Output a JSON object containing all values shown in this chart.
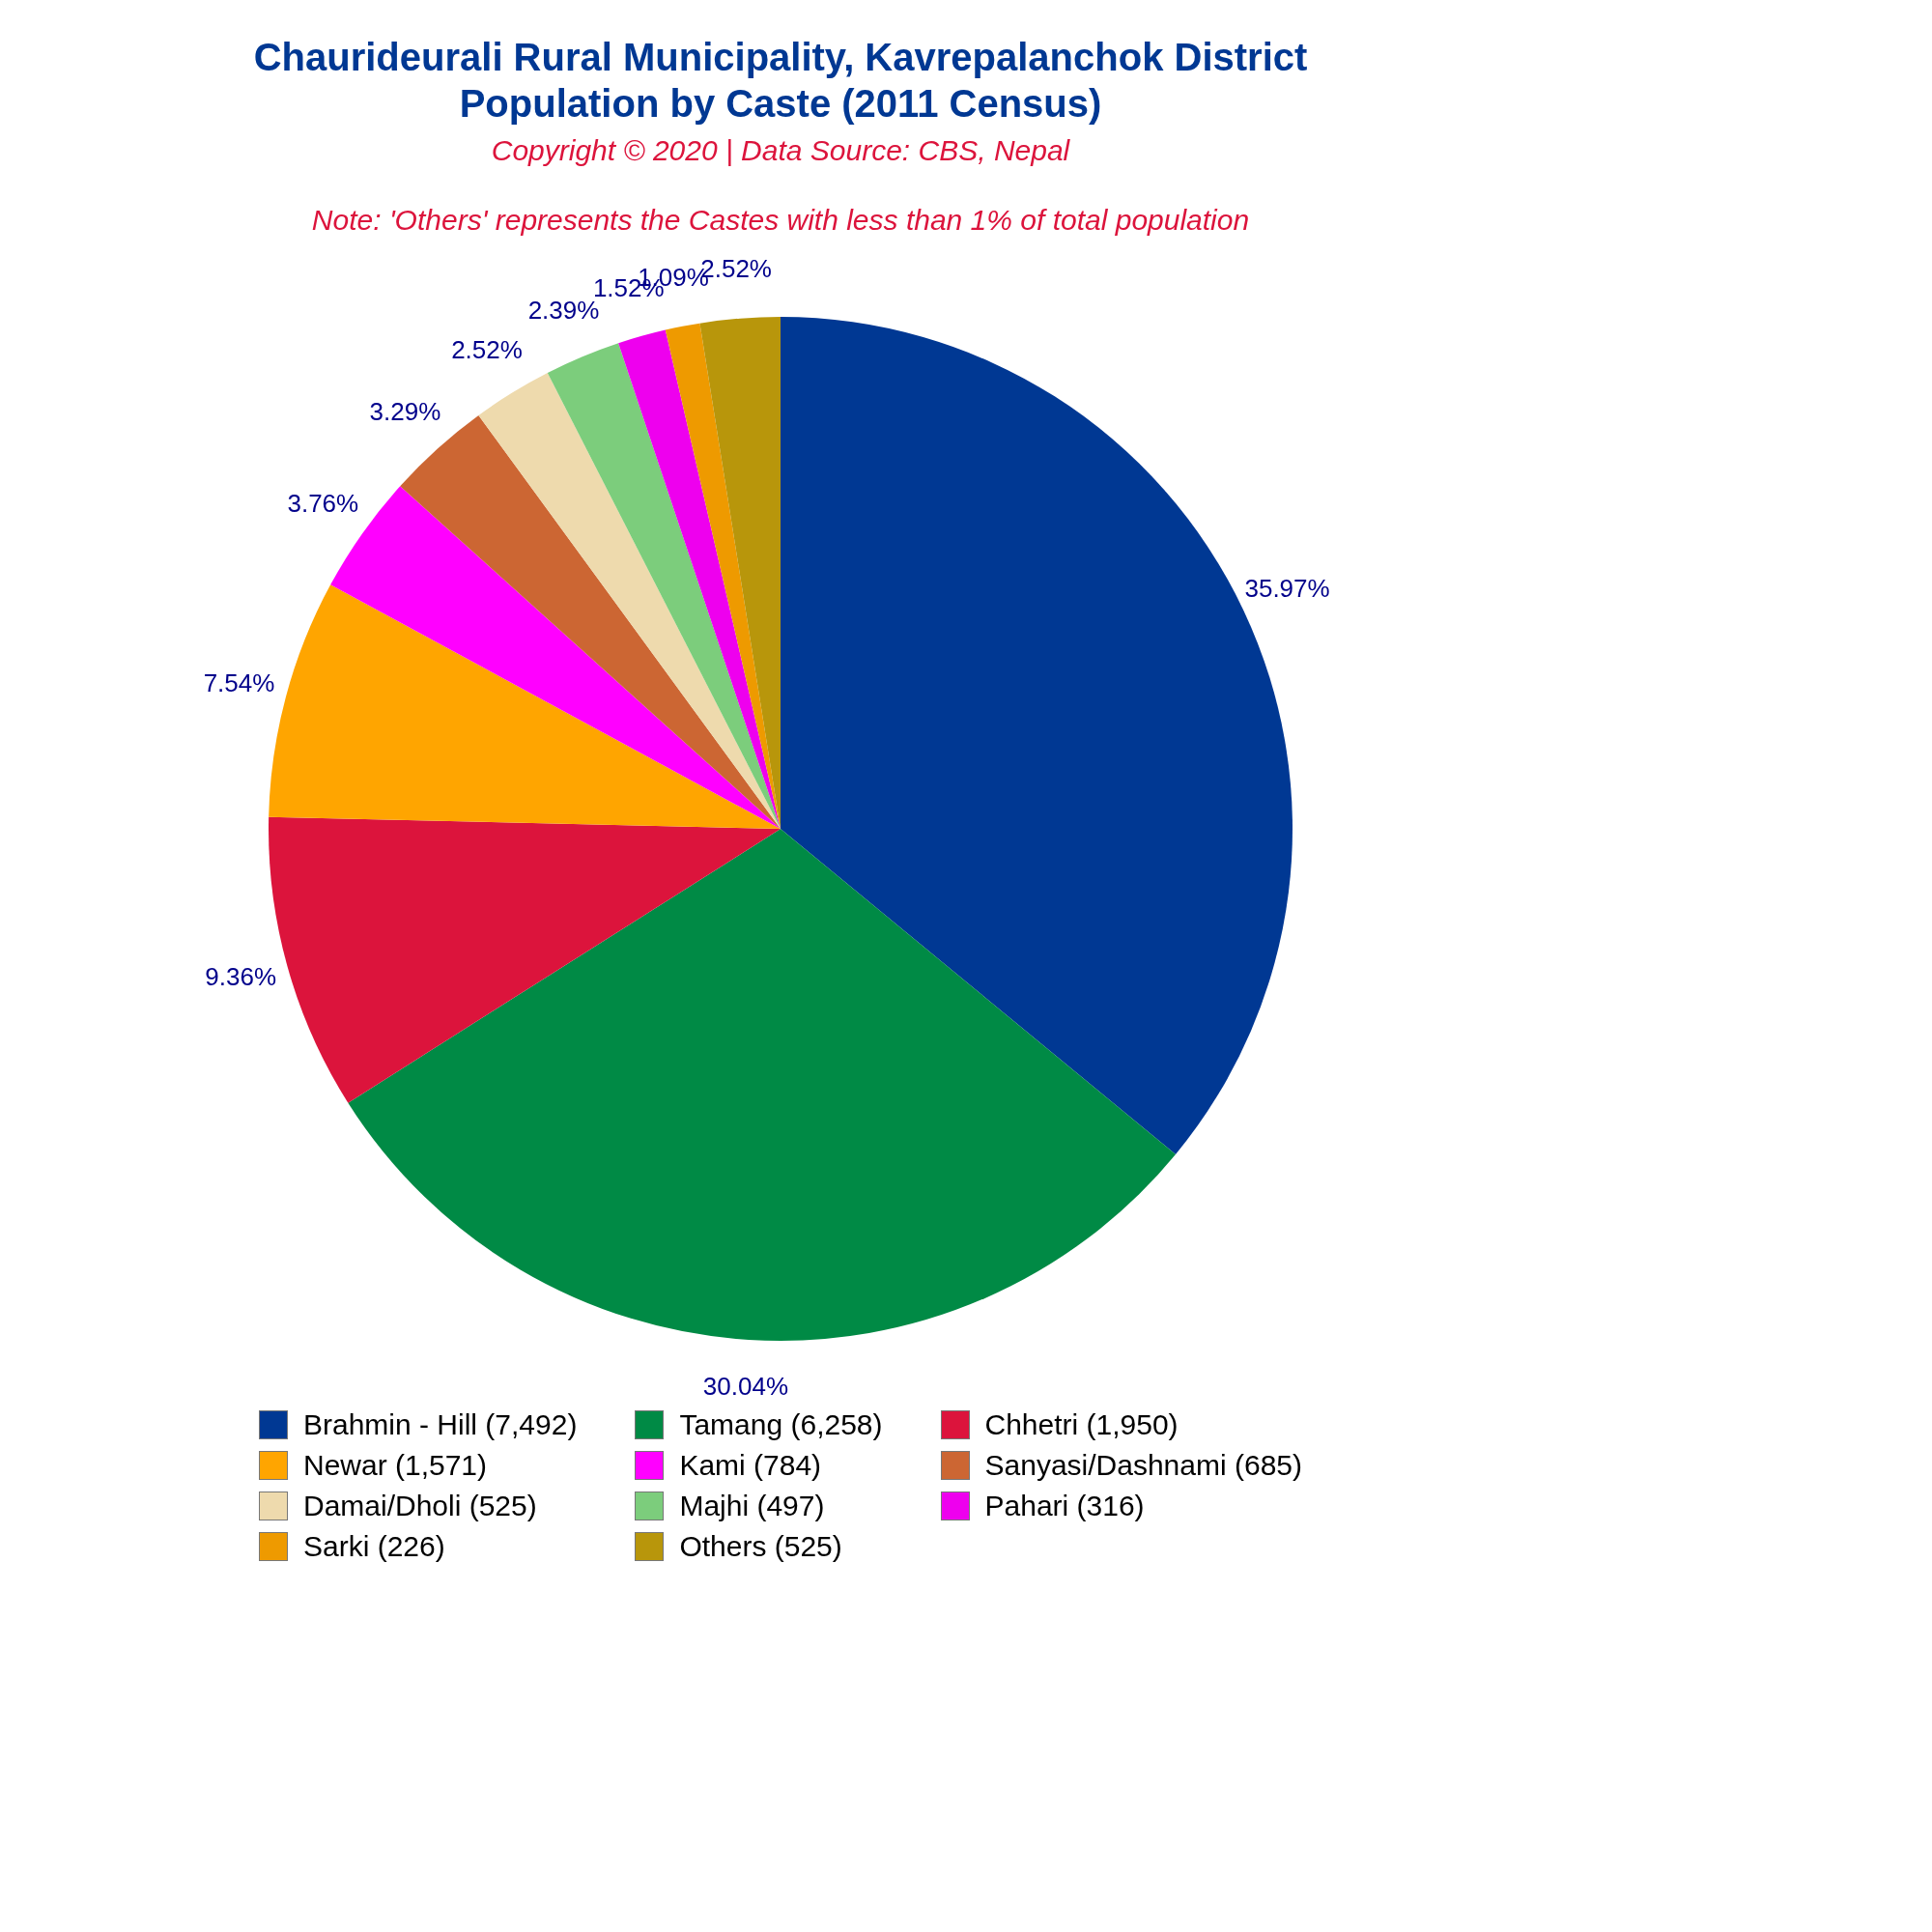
{
  "chart_data": {
    "type": "pie",
    "title": "Chaurideurali Rural Municipality, Kavrepalanchok District\nPopulation by Caste (2011 Census)",
    "subtitle": "Copyright © 2020 | Data Source: CBS, Nepal",
    "annotations": [
      "Note: 'Others' represents the Castes with less than 1% of total population"
    ],
    "categories": [
      "Brahmin - Hill (7,492)",
      "Tamang (6,258)",
      "Chhetri (1,950)",
      "Newar (1,571)",
      "Kami (784)",
      "Sanyasi/Dashnami (685)",
      "Damai/Dholi (525)",
      "Majhi (497)",
      "Pahari (316)",
      "Sarki (226)",
      "Others (525)"
    ],
    "values": [
      35.97,
      30.04,
      9.36,
      7.54,
      3.76,
      3.29,
      2.52,
      2.39,
      1.52,
      1.09,
      2.52
    ],
    "value_labels": [
      "35.97%",
      "30.04%",
      "9.36%",
      "7.54%",
      "3.76%",
      "3.29%",
      "2.52%",
      "2.39%",
      "1.52%",
      "1.09%",
      "2.52%"
    ],
    "colors": [
      "#003893",
      "#008a45",
      "#dc143c",
      "#ffa500",
      "#ff00ff",
      "#cc6633",
      "#eedaad",
      "#7ccd7c",
      "#ee00ee",
      "#ee9a00",
      "#b8960b"
    ],
    "legend": "bottom"
  }
}
